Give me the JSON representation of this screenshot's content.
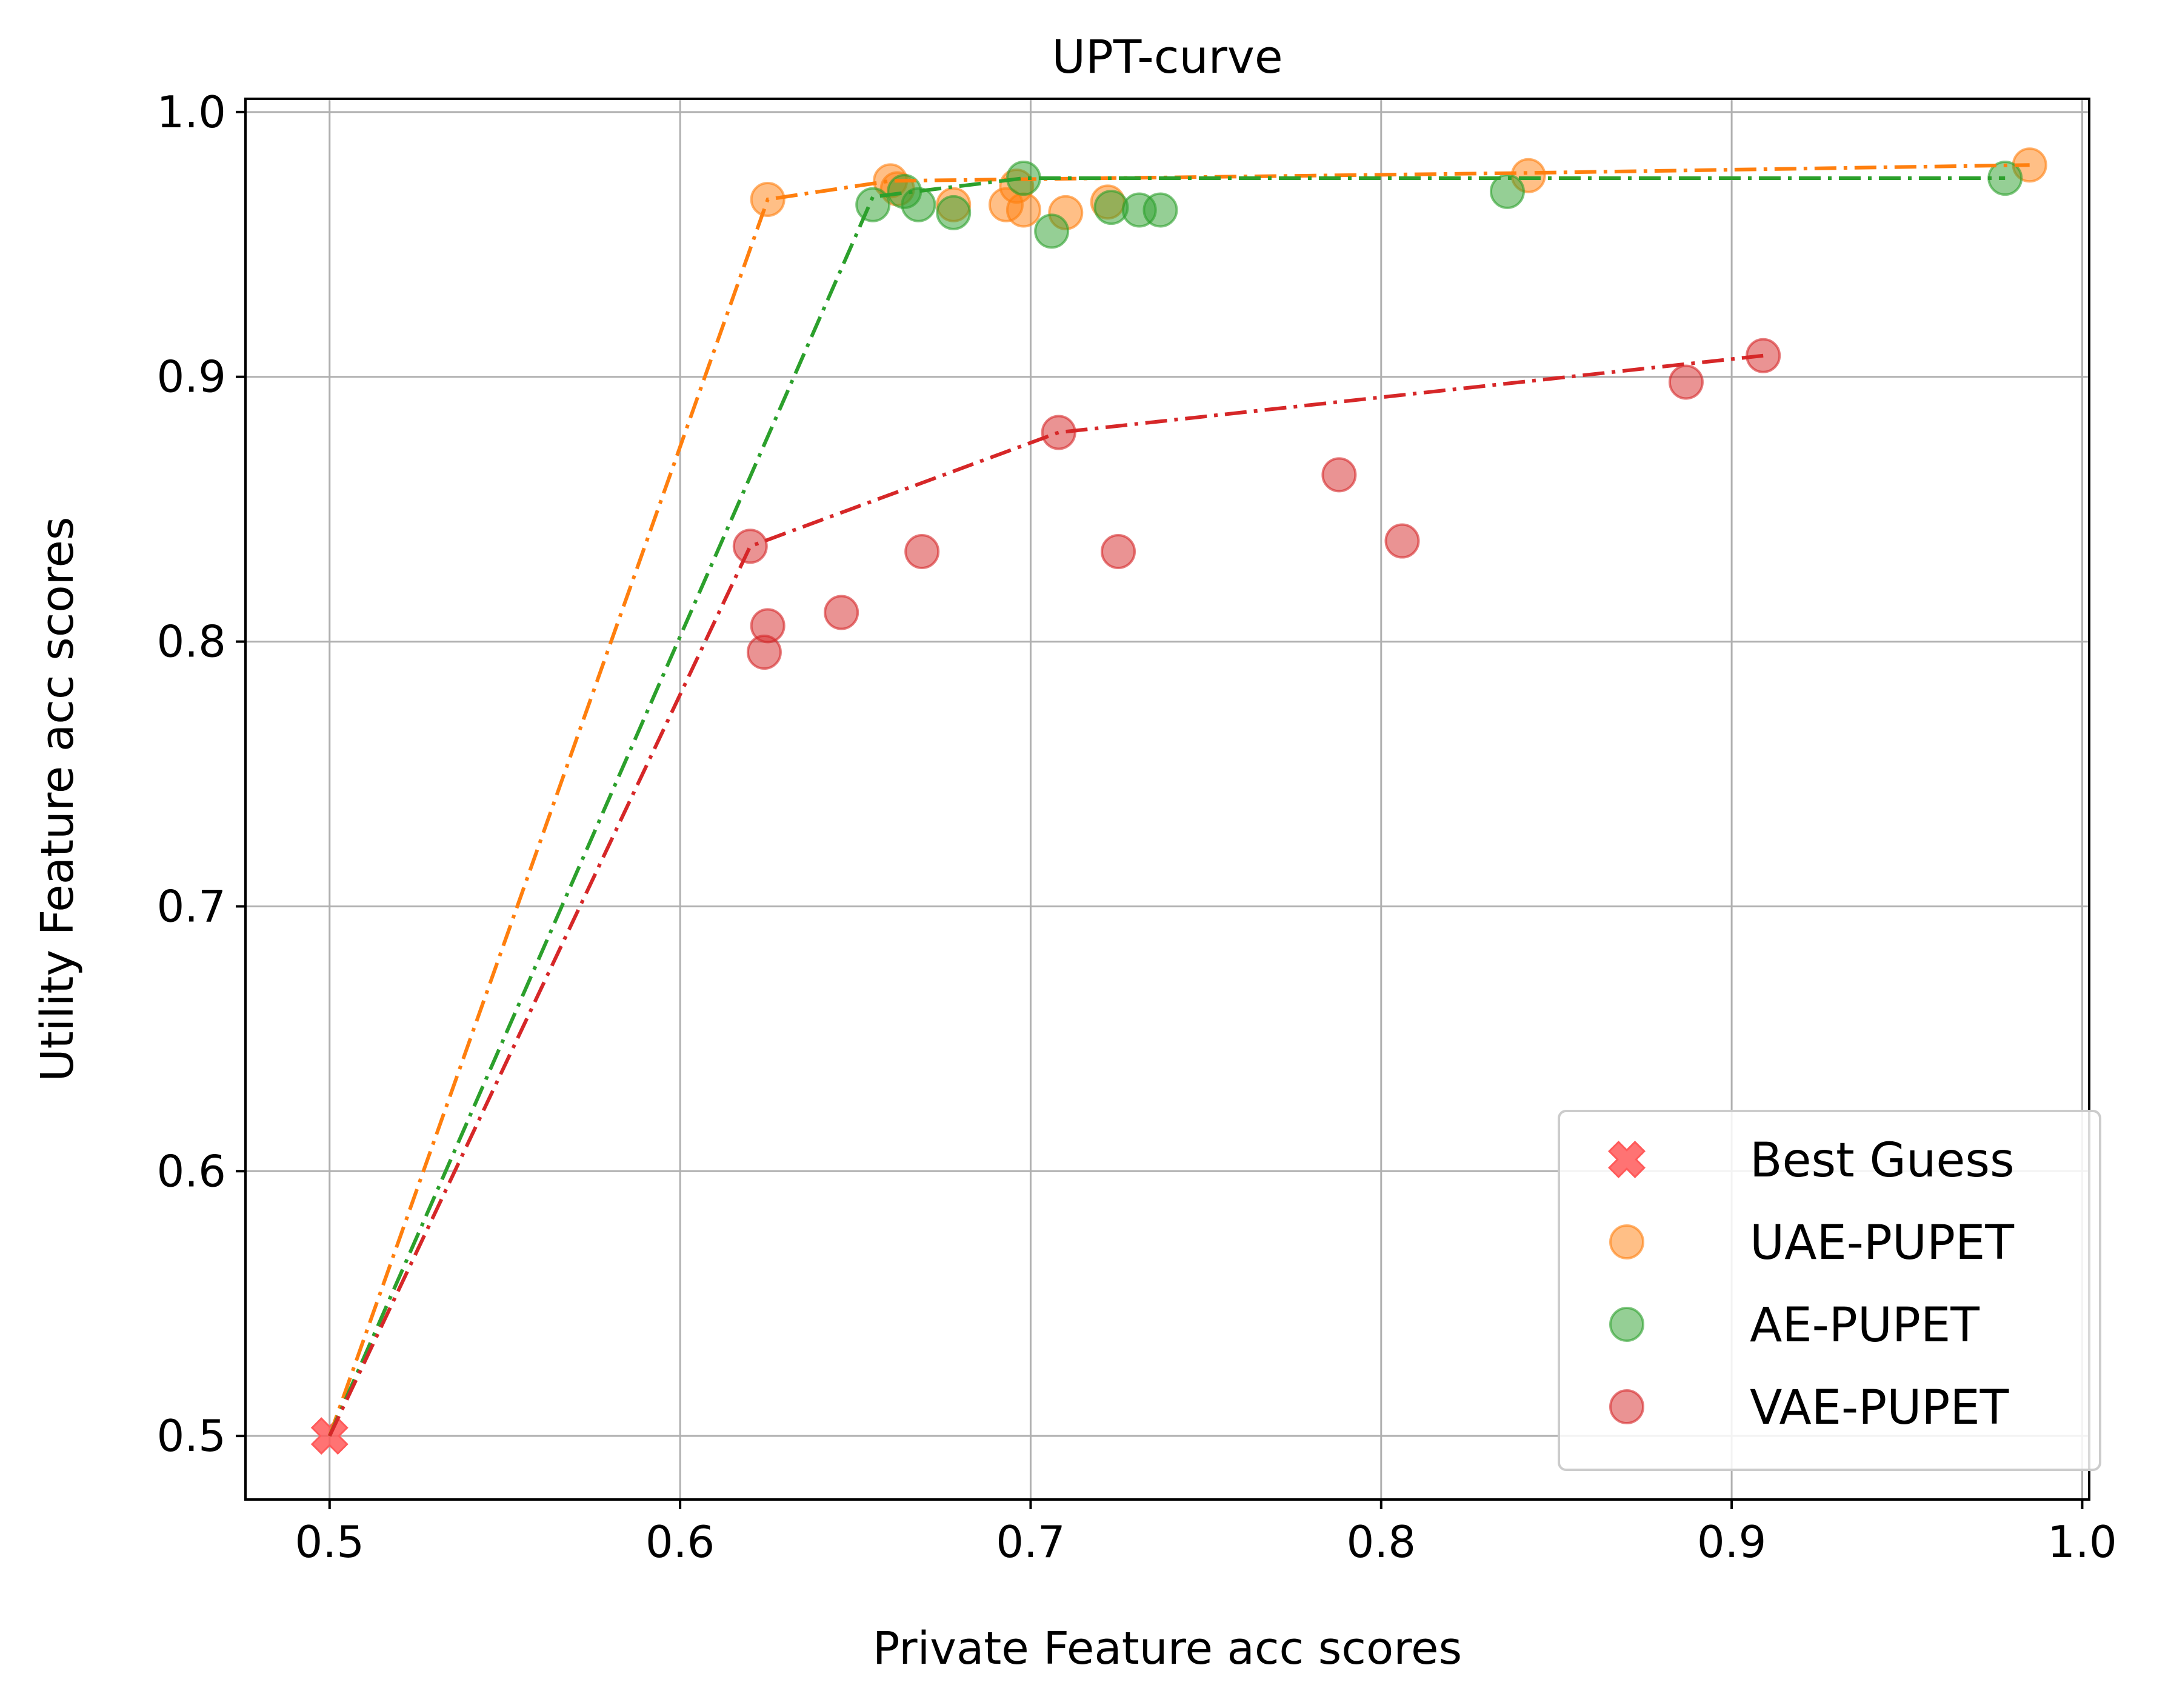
{
  "chart_data": {
    "type": "scatter",
    "title": "UPT-curve",
    "xlabel": "Private Feature acc scores",
    "ylabel": "Utility Feature acc scores",
    "xlim": [
      0.476,
      1.002
    ],
    "ylim": [
      0.476,
      1.005
    ],
    "xticks": [
      0.5,
      0.6,
      0.7,
      0.8,
      0.9,
      1.0
    ],
    "xtick_labels": [
      "0.5",
      "0.6",
      "0.7",
      "0.8",
      "0.9",
      "1.0"
    ],
    "yticks": [
      0.5,
      0.6,
      0.7,
      0.8,
      0.9,
      1.0
    ],
    "ytick_labels": [
      "0.5",
      "0.6",
      "0.7",
      "0.8",
      "0.9",
      "1.0"
    ],
    "grid": true,
    "legend_position": "bottom-right",
    "series": [
      {
        "name": "Best Guess",
        "marker": "x",
        "color": "#ff5a5a",
        "points": [
          [
            0.5,
            0.5
          ]
        ],
        "line": []
      },
      {
        "name": "UAE-PUPET",
        "marker": "circle",
        "color": "#ff7f0e",
        "points": [
          [
            0.625,
            0.967
          ],
          [
            0.66,
            0.974
          ],
          [
            0.662,
            0.971
          ],
          [
            0.678,
            0.965
          ],
          [
            0.693,
            0.965
          ],
          [
            0.696,
            0.972
          ],
          [
            0.698,
            0.963
          ],
          [
            0.71,
            0.962
          ],
          [
            0.722,
            0.966
          ],
          [
            0.842,
            0.976
          ],
          [
            0.985,
            0.98
          ]
        ],
        "line": [
          [
            0.5,
            0.5
          ],
          [
            0.625,
            0.967
          ],
          [
            0.66,
            0.974
          ],
          [
            0.842,
            0.977
          ],
          [
            0.985,
            0.98
          ]
        ]
      },
      {
        "name": "AE-PUPET",
        "marker": "circle",
        "color": "#2ca02c",
        "points": [
          [
            0.655,
            0.965
          ],
          [
            0.664,
            0.97
          ],
          [
            0.668,
            0.965
          ],
          [
            0.678,
            0.962
          ],
          [
            0.698,
            0.975
          ],
          [
            0.706,
            0.955
          ],
          [
            0.723,
            0.964
          ],
          [
            0.731,
            0.963
          ],
          [
            0.737,
            0.963
          ],
          [
            0.836,
            0.97
          ],
          [
            0.978,
            0.975
          ]
        ],
        "line": [
          [
            0.5,
            0.5
          ],
          [
            0.655,
            0.968
          ],
          [
            0.698,
            0.975
          ],
          [
            0.978,
            0.975
          ]
        ]
      },
      {
        "name": "VAE-PUPET",
        "marker": "circle",
        "color": "#d62728",
        "points": [
          [
            0.62,
            0.836
          ],
          [
            0.625,
            0.806
          ],
          [
            0.624,
            0.796
          ],
          [
            0.646,
            0.811
          ],
          [
            0.669,
            0.834
          ],
          [
            0.708,
            0.879
          ],
          [
            0.725,
            0.834
          ],
          [
            0.788,
            0.863
          ],
          [
            0.806,
            0.838
          ],
          [
            0.887,
            0.898
          ],
          [
            0.909,
            0.908
          ]
        ],
        "line": [
          [
            0.5,
            0.5
          ],
          [
            0.62,
            0.836
          ],
          [
            0.708,
            0.879
          ],
          [
            0.909,
            0.908
          ]
        ]
      }
    ]
  }
}
